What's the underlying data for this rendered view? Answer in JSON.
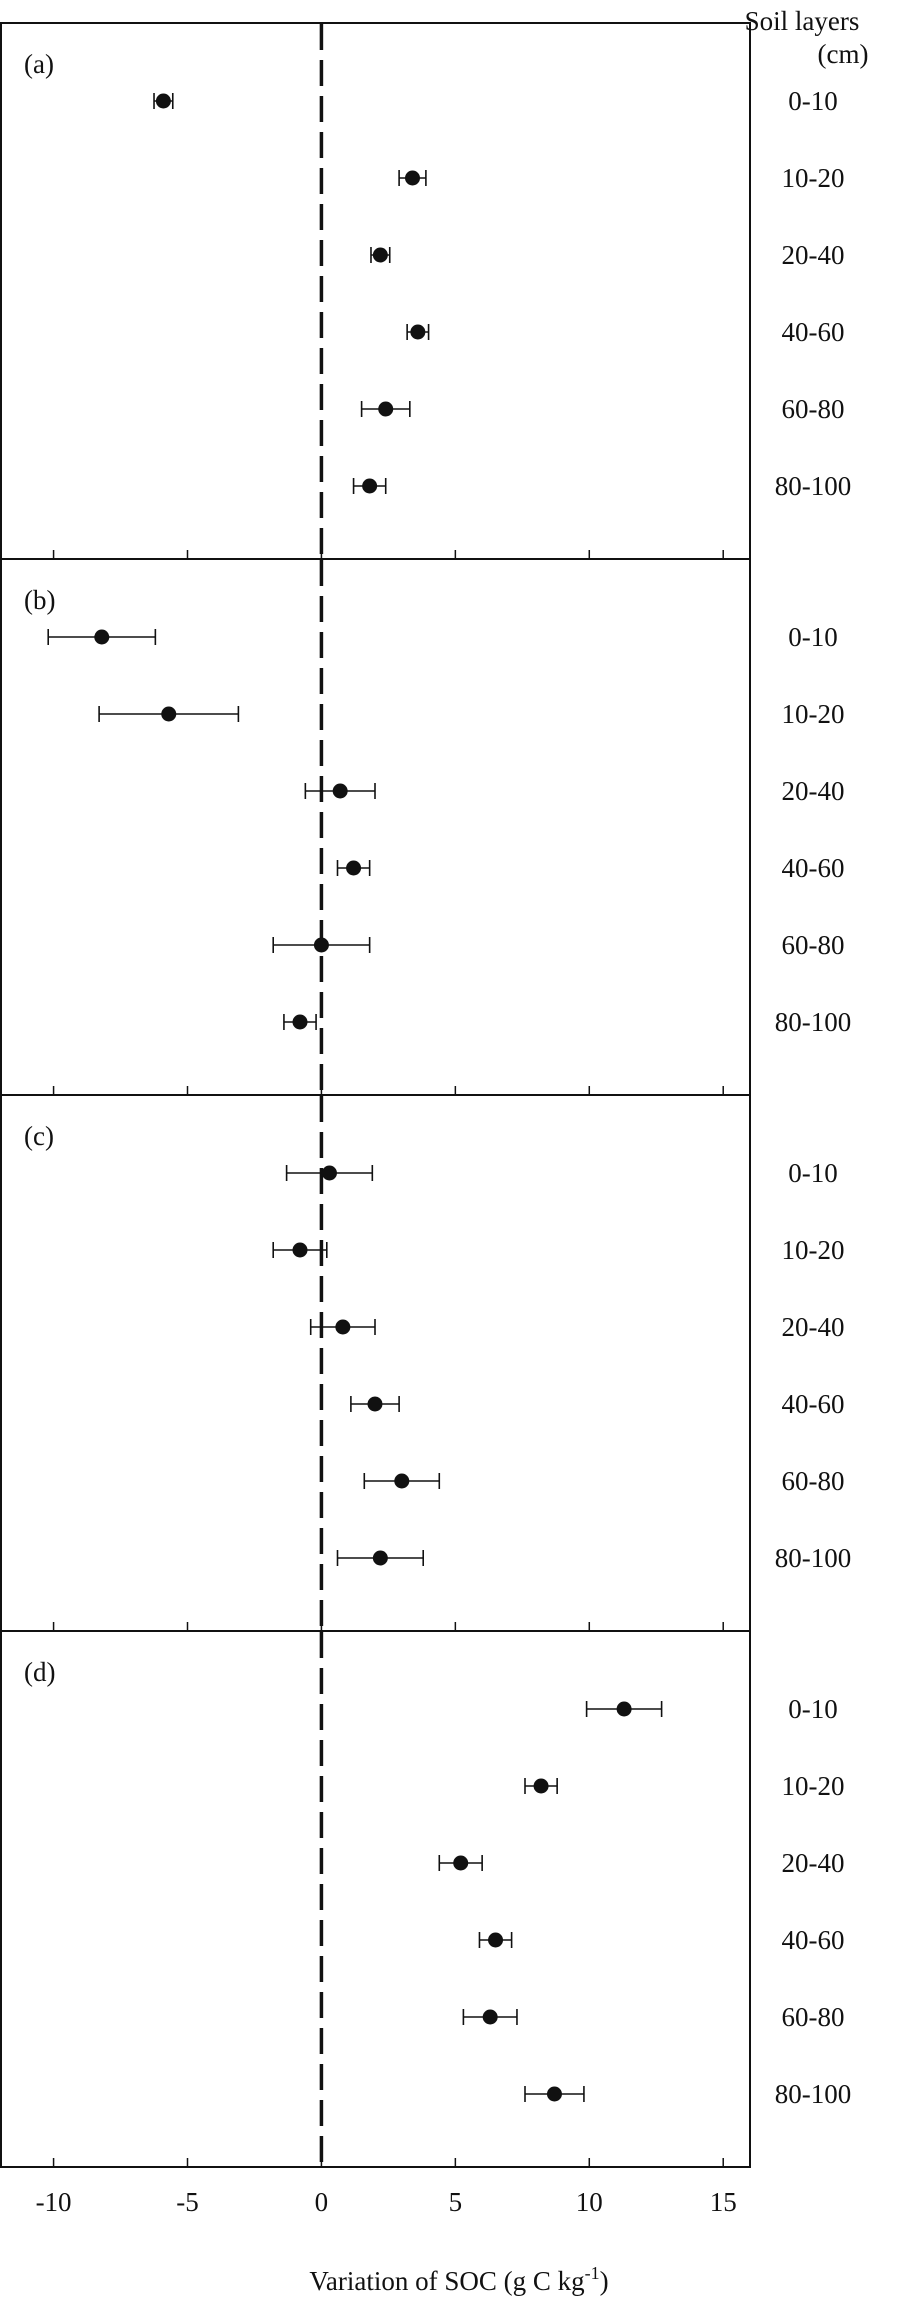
{
  "chart_data": {
    "type": "scatter",
    "subtype": "dot-plot with horizontal error bars, four stacked panels",
    "xlabel": "Variation of  SOC (g C kg",
    "xlabel_superscript": "-1",
    "xlabel_close": ")",
    "xlim": [
      -12,
      16
    ],
    "xticks": [
      -10,
      -5,
      0,
      5,
      10,
      15
    ],
    "xtick_labels": [
      "-10",
      "-5",
      "0",
      "5",
      "10",
      "15"
    ],
    "reference_line": {
      "x": 0,
      "style": "dashed"
    },
    "ylabel_lines": [
      "Soil layers",
      "(cm)"
    ],
    "categories": [
      "0-10",
      "10-20",
      "20-40",
      "40-60",
      "60-80",
      "80-100"
    ],
    "panels": [
      {
        "label": "(a)",
        "values": [
          -5.9,
          3.4,
          2.2,
          3.6,
          2.4,
          1.8
        ],
        "errors": [
          0.35,
          0.5,
          0.35,
          0.4,
          0.9,
          0.6
        ]
      },
      {
        "label": "(b)",
        "values": [
          -8.2,
          -5.7,
          0.7,
          1.2,
          0.0,
          -0.8
        ],
        "errors": [
          2.0,
          2.6,
          1.3,
          0.6,
          1.8,
          0.6
        ]
      },
      {
        "label": "(c)",
        "values": [
          0.3,
          -0.8,
          0.8,
          2.0,
          3.0,
          2.2
        ],
        "errors": [
          1.6,
          1.0,
          1.2,
          0.9,
          1.4,
          1.6
        ]
      },
      {
        "label": "(d)",
        "values": [
          11.3,
          8.2,
          5.2,
          6.5,
          6.3,
          8.7
        ],
        "errors": [
          1.4,
          0.6,
          0.8,
          0.6,
          1.0,
          1.1
        ]
      }
    ]
  }
}
